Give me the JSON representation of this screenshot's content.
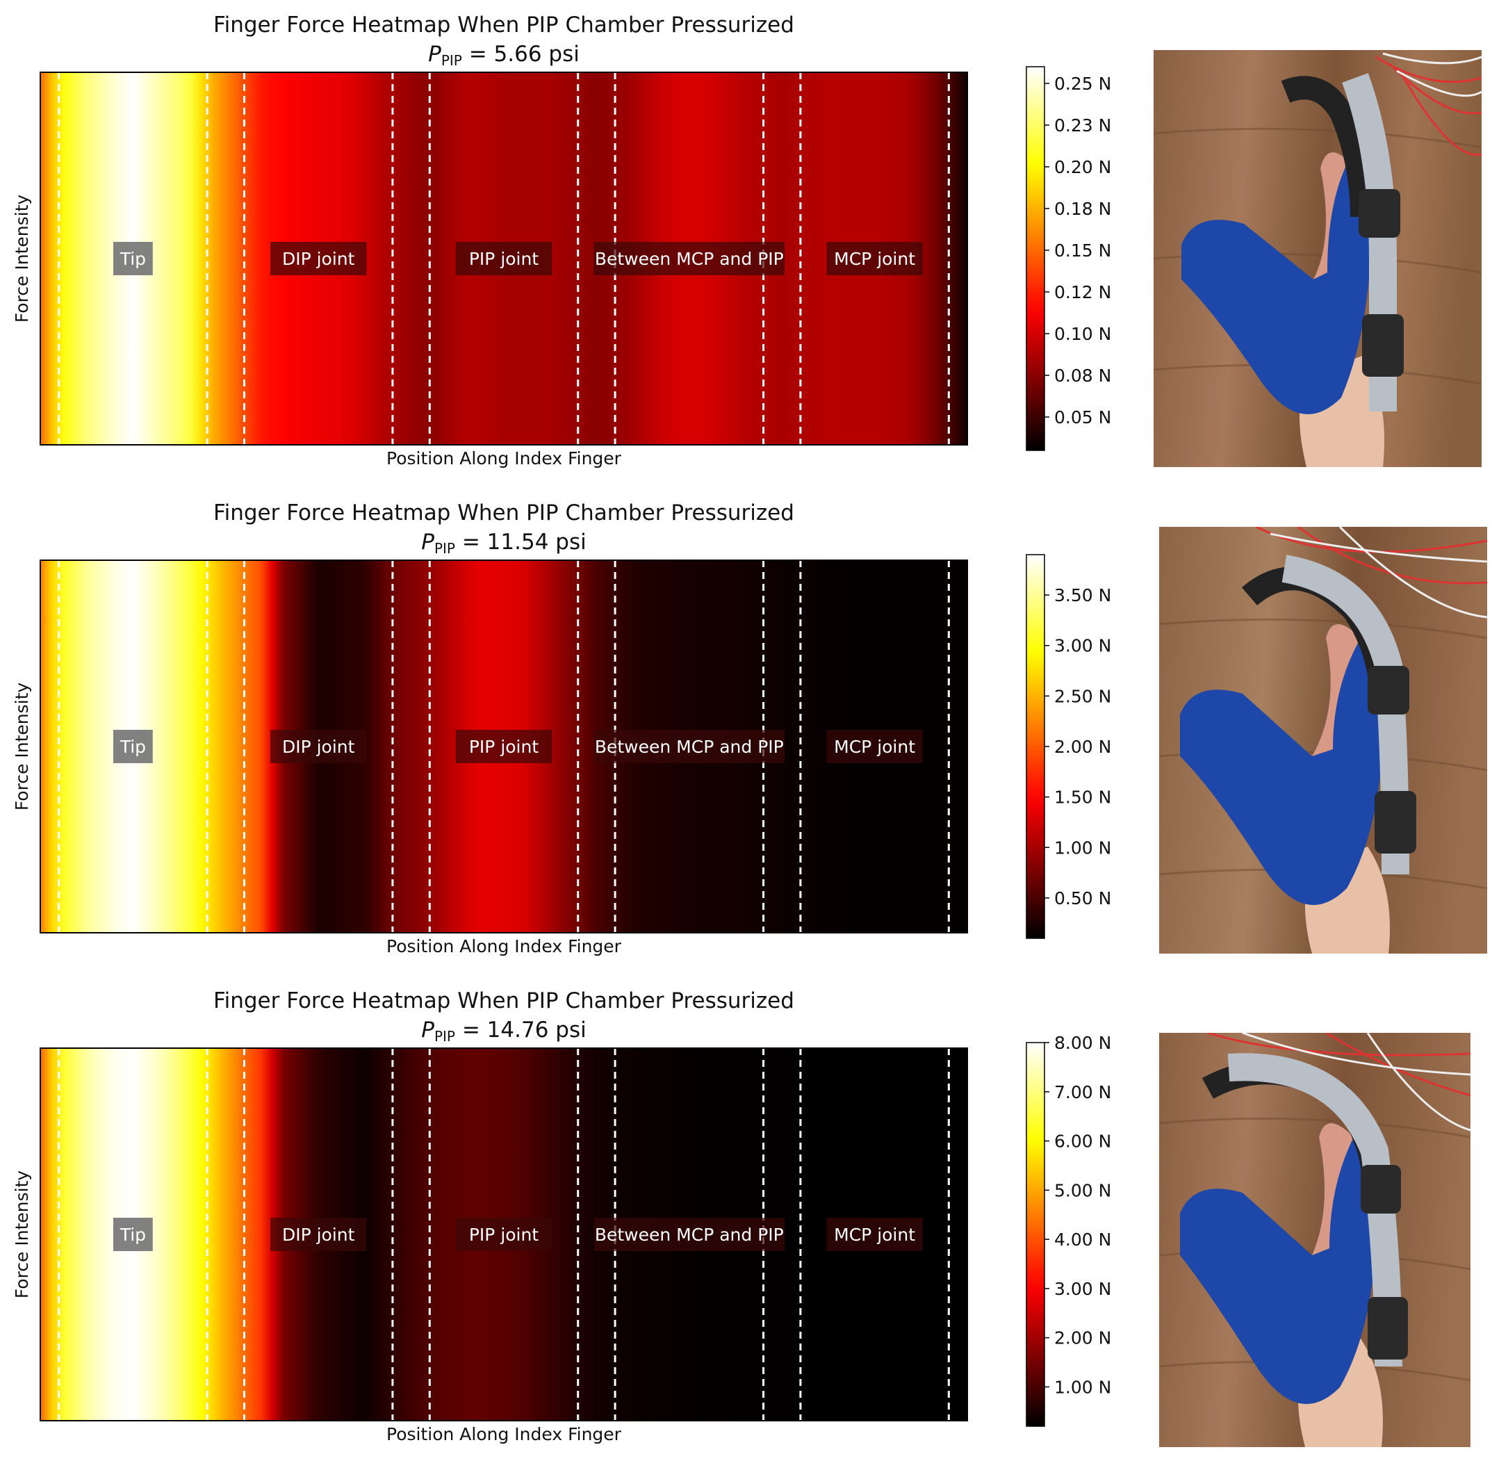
{
  "chart_data": [
    {
      "type": "heatmap",
      "title": "Finger Force Heatmap When PIP Chamber Pressurized",
      "subtitle_symbol": "P",
      "subtitle_subscript": "PIP",
      "subtitle_value": "= 5.66 psi",
      "xlabel": "Position Along Index Finger",
      "ylabel": "Force Intensity",
      "colormap": "hot",
      "colorbar_range": [
        0.03,
        0.26
      ],
      "colorbar_ticks": [
        "0.05 N",
        "0.08 N",
        "0.10 N",
        "0.12 N",
        "0.15 N",
        "0.18 N",
        "0.20 N",
        "0.23 N",
        "0.25 N"
      ],
      "colorbar_tick_values": [
        0.05,
        0.075,
        0.1,
        0.125,
        0.15,
        0.175,
        0.2,
        0.225,
        0.25
      ],
      "regions": [
        "Tip",
        "DIP joint",
        "PIP joint",
        "Between MCP and PIP",
        "MCP joint"
      ],
      "x": [
        0,
        0.02,
        0.05,
        0.08,
        0.1,
        0.13,
        0.16,
        0.18,
        0.2,
        0.22,
        0.24,
        0.28,
        0.33,
        0.38,
        0.42,
        0.46,
        0.5,
        0.55,
        0.6,
        0.63,
        0.68,
        0.72,
        0.76,
        0.8,
        0.85,
        0.9,
        0.94,
        0.97,
        1.0
      ],
      "values": [
        0.15,
        0.2,
        0.23,
        0.25,
        0.26,
        0.24,
        0.22,
        0.18,
        0.16,
        0.14,
        0.12,
        0.11,
        0.105,
        0.085,
        0.075,
        0.09,
        0.085,
        0.085,
        0.075,
        0.08,
        0.1,
        0.1,
        0.09,
        0.085,
        0.09,
        0.09,
        0.085,
        0.065,
        0.035
      ]
    },
    {
      "type": "heatmap",
      "title": "Finger Force Heatmap When PIP Chamber Pressurized",
      "subtitle_symbol": "P",
      "subtitle_subscript": "PIP",
      "subtitle_value": "= 11.54 psi",
      "xlabel": "Position Along Index Finger",
      "ylabel": "Force Intensity",
      "colormap": "hot",
      "colorbar_range": [
        0.1,
        3.9
      ],
      "colorbar_ticks": [
        "0.50 N",
        "1.00 N",
        "1.50 N",
        "2.00 N",
        "2.50 N",
        "3.00 N",
        "3.50 N"
      ],
      "colorbar_tick_values": [
        0.5,
        1.0,
        1.5,
        2.0,
        2.5,
        3.0,
        3.5
      ],
      "regions": [
        "Tip",
        "DIP joint",
        "PIP joint",
        "Between MCP and PIP",
        "MCP joint"
      ],
      "x": [
        0,
        0.02,
        0.05,
        0.08,
        0.1,
        0.13,
        0.16,
        0.18,
        0.2,
        0.22,
        0.24,
        0.26,
        0.3,
        0.35,
        0.38,
        0.42,
        0.47,
        0.52,
        0.56,
        0.6,
        0.64,
        0.7,
        0.76,
        0.82,
        0.9,
        1.0
      ],
      "values": [
        2.2,
        3.0,
        3.5,
        3.8,
        3.9,
        3.6,
        3.2,
        2.8,
        2.5,
        2.2,
        1.9,
        0.8,
        0.25,
        0.35,
        0.7,
        0.9,
        1.35,
        1.3,
        0.9,
        0.5,
        0.28,
        0.22,
        0.2,
        0.15,
        0.12,
        0.12
      ]
    },
    {
      "type": "heatmap",
      "title": "Finger Force Heatmap When PIP Chamber Pressurized",
      "subtitle_symbol": "P",
      "subtitle_subscript": "PIP",
      "subtitle_value": "= 14.76 psi",
      "xlabel": "Position Along Index Finger",
      "ylabel": "Force Intensity",
      "colormap": "hot",
      "colorbar_range": [
        0.2,
        8.0
      ],
      "colorbar_ticks": [
        "1.00 N",
        "2.00 N",
        "3.00 N",
        "4.00 N",
        "5.00 N",
        "6.00 N",
        "7.00 N",
        "8.00 N"
      ],
      "colorbar_tick_values": [
        1,
        2,
        3,
        4,
        5,
        6,
        7,
        8
      ],
      "regions": [
        "Tip",
        "DIP joint",
        "PIP joint",
        "Between MCP and PIP",
        "MCP joint"
      ],
      "x": [
        0,
        0.02,
        0.05,
        0.08,
        0.1,
        0.13,
        0.16,
        0.18,
        0.2,
        0.22,
        0.24,
        0.26,
        0.3,
        0.35,
        0.38,
        0.42,
        0.47,
        0.52,
        0.56,
        0.6,
        0.66,
        0.72,
        0.8,
        0.9,
        1.0
      ],
      "values": [
        4.2,
        6.2,
        7.3,
        7.9,
        8.0,
        7.5,
        6.6,
        5.8,
        5.0,
        4.3,
        3.6,
        1.6,
        0.7,
        0.35,
        0.7,
        1.1,
        1.3,
        1.1,
        0.7,
        0.4,
        0.3,
        0.25,
        0.22,
        0.2,
        0.2
      ]
    }
  ]
}
